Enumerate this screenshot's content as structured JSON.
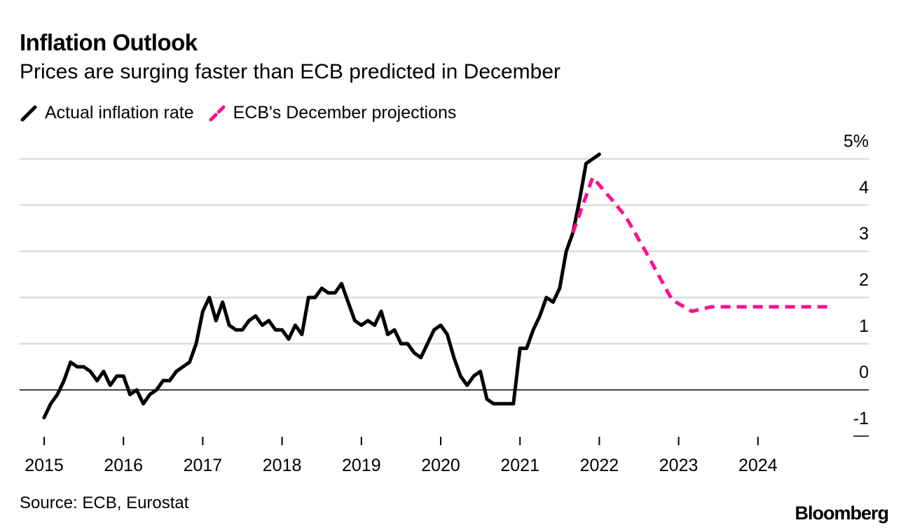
{
  "header": {
    "title": "Inflation Outlook",
    "subtitle": "Prices are surging faster than ECB predicted in December"
  },
  "footer": {
    "source": "Source: ECB, Eurostat",
    "logo": "Bloomberg"
  },
  "chart_data": {
    "type": "line",
    "title": "Inflation Outlook",
    "subtitle": "Prices are surging faster than ECB predicted in December",
    "xlabel": "",
    "ylabel": "",
    "x_ticks": [
      "2015",
      "2016",
      "2017",
      "2018",
      "2019",
      "2020",
      "2021",
      "2022",
      "2023",
      "2024"
    ],
    "y_ticks": [
      "5%",
      "4",
      "3",
      "2",
      "1",
      "0",
      "-1"
    ],
    "y_tick_values": [
      5,
      4,
      3,
      2,
      1,
      0,
      -1
    ],
    "ylim": [
      -1,
      5
    ],
    "xlim": [
      "2015-01",
      "2024-12"
    ],
    "grid": true,
    "legend_position": "top-left",
    "series": [
      {
        "name": "Actual inflation rate",
        "color": "#000000",
        "style": "solid",
        "start": "2015-01",
        "frequency": "monthly",
        "values": [
          -0.6,
          -0.3,
          -0.1,
          0.2,
          0.6,
          0.5,
          0.5,
          0.4,
          0.2,
          0.4,
          0.1,
          0.3,
          0.3,
          -0.1,
          0.0,
          -0.3,
          -0.1,
          0.0,
          0.2,
          0.2,
          0.4,
          0.5,
          0.6,
          1.0,
          1.7,
          2.0,
          1.5,
          1.9,
          1.4,
          1.3,
          1.3,
          1.5,
          1.6,
          1.4,
          1.5,
          1.3,
          1.3,
          1.1,
          1.4,
          1.2,
          2.0,
          2.0,
          2.2,
          2.1,
          2.1,
          2.3,
          1.9,
          1.5,
          1.4,
          1.5,
          1.4,
          1.7,
          1.2,
          1.3,
          1.0,
          1.0,
          0.8,
          0.7,
          1.0,
          1.3,
          1.4,
          1.2,
          0.7,
          0.3,
          0.1,
          0.3,
          0.4,
          -0.2,
          -0.3,
          -0.3,
          -0.3,
          -0.3,
          0.9,
          0.9,
          1.3,
          1.6,
          2.0,
          1.9,
          2.2,
          3.0,
          3.4,
          4.1,
          4.9,
          5.0,
          5.1
        ]
      },
      {
        "name": "ECB's December projections",
        "color": "#ff0d8e",
        "style": "dashed",
        "points": [
          {
            "date": "2021-09",
            "value": 3.4
          },
          {
            "date": "2021-12",
            "value": 4.6
          },
          {
            "date": "2022-03",
            "value": 4.1
          },
          {
            "date": "2022-05",
            "value": 3.75
          },
          {
            "date": "2022-08",
            "value": 3.0
          },
          {
            "date": "2022-12",
            "value": 1.95
          },
          {
            "date": "2023-03",
            "value": 1.7
          },
          {
            "date": "2023-06",
            "value": 1.8
          },
          {
            "date": "2024-12",
            "value": 1.8
          }
        ]
      }
    ]
  }
}
